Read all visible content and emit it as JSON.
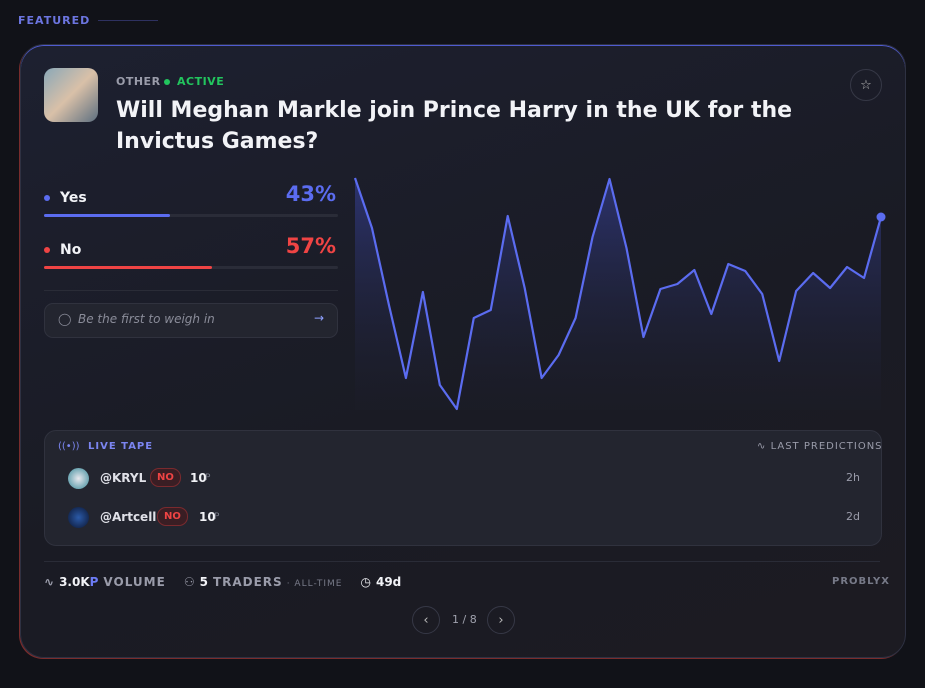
{
  "section_label": "FEATURED",
  "market": {
    "category": "OTHER",
    "status": "ACTIVE",
    "title": "Will Meghan Markle join Prince Harry in the UK for the Invictus Games?",
    "outcomes": [
      {
        "name": "Yes",
        "value": 43,
        "label": "43%",
        "color": "#5b6cf0"
      },
      {
        "name": "No",
        "value": 57,
        "label": "57%",
        "color": "#ef4444"
      }
    ],
    "comment_placeholder": "Be the first to weigh in"
  },
  "chart_data": {
    "type": "line",
    "color": "#5b6cf0",
    "values": [
      50.8,
      40.8,
      25.4,
      10.8,
      28,
      9.4,
      4.6,
      22.8,
      24.4,
      43.2,
      28.8,
      10.8,
      15.4,
      22.8,
      39,
      50.6,
      36.8,
      19,
      28.6,
      29.6,
      32.4,
      23.6,
      33.6,
      32.2,
      27.6,
      14.2,
      28.2,
      31.8,
      28.8,
      33,
      30.8,
      43
    ]
  },
  "live_tape": {
    "title": "LIVE TAPE",
    "subtitle": "LAST PREDICTIONS",
    "trades": [
      {
        "user": "@KRYL",
        "side": "NO",
        "amount": 10,
        "unit": "P",
        "time": "2h"
      },
      {
        "user": "@Artcell",
        "side": "NO",
        "amount": 10,
        "unit": "P",
        "time": "2d"
      }
    ]
  },
  "footer": {
    "volume": "3.0K",
    "volume_unit": "P",
    "volume_label": "VOLUME",
    "traders": 5,
    "traders_label": "TRADERS",
    "traders_scope": "· ALL-TIME",
    "time_left": "49d",
    "brand": "PROBLYX"
  },
  "pagination": {
    "current": 1,
    "separator": "/",
    "total": 8
  }
}
